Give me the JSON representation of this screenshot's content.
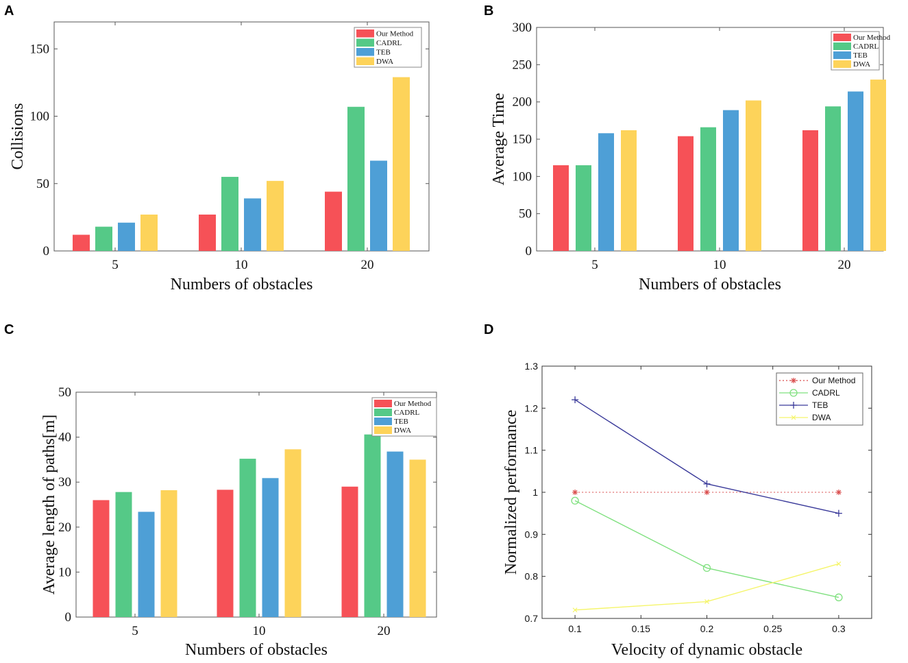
{
  "colors": {
    "our_method": "#f65157",
    "cadrl": "#55c987",
    "teb": "#4e9fd6",
    "dwa": "#fdd35a",
    "line_our": "#d94b4b",
    "line_cadrl": "#7ee07e",
    "line_teb": "#3a3a9a",
    "line_dwa": "#f5f56a"
  },
  "chart_data": [
    {
      "panel": "A",
      "type": "bar",
      "xlabel": "Numbers of obstacles",
      "ylabel": "Collisions",
      "ylim": [
        0,
        170
      ],
      "yticks": [
        0,
        50,
        100,
        150
      ],
      "categories": [
        "5",
        "10",
        "20"
      ],
      "series": [
        {
          "name": "Our Method",
          "values": [
            12,
            27,
            44
          ]
        },
        {
          "name": "CADRL",
          "values": [
            18,
            55,
            107
          ]
        },
        {
          "name": "TEB",
          "values": [
            21,
            39,
            67
          ]
        },
        {
          "name": "DWA",
          "values": [
            27,
            52,
            129
          ]
        }
      ],
      "legend": "top-right"
    },
    {
      "panel": "B",
      "type": "bar",
      "xlabel": "Numbers of obstacles",
      "ylabel": "Average Time",
      "ylim": [
        0,
        300
      ],
      "yticks": [
        0,
        50,
        100,
        150,
        200,
        250,
        300
      ],
      "categories": [
        "5",
        "10",
        "20"
      ],
      "series": [
        {
          "name": "Our Method",
          "values": [
            115,
            154,
            162
          ]
        },
        {
          "name": "CADRL",
          "values": [
            115,
            166,
            194
          ]
        },
        {
          "name": "TEB",
          "values": [
            158,
            189,
            214
          ]
        },
        {
          "name": "DWA",
          "values": [
            162,
            202,
            230
          ]
        }
      ],
      "legend": "top-right"
    },
    {
      "panel": "C",
      "type": "bar",
      "xlabel": "Numbers of obstacles",
      "ylabel": "Average length of paths[m]",
      "ylim": [
        0,
        50
      ],
      "yticks": [
        0,
        10,
        20,
        30,
        40,
        50
      ],
      "categories": [
        "5",
        "10",
        "20"
      ],
      "series": [
        {
          "name": "Our Method",
          "values": [
            26,
            28.3,
            29
          ]
        },
        {
          "name": "CADRL",
          "values": [
            27.8,
            35.2,
            40.6
          ]
        },
        {
          "name": "TEB",
          "values": [
            23.4,
            30.9,
            36.8
          ]
        },
        {
          "name": "DWA",
          "values": [
            28.2,
            37.3,
            35
          ]
        }
      ],
      "legend": "top-right"
    },
    {
      "panel": "D",
      "type": "line",
      "xlabel": "Velocity of dynamic obstacle",
      "ylabel": "Normalized performance",
      "xlim": [
        0.075,
        0.325
      ],
      "ylim": [
        0.7,
        1.3
      ],
      "xticks": [
        "0.1",
        "0.15",
        "0.2",
        "0.25",
        "0.3"
      ],
      "yticks": [
        "0.7",
        "0.8",
        "0.9",
        "1",
        "1.1",
        "1.2",
        "1.3"
      ],
      "x": [
        0.1,
        0.2,
        0.3
      ],
      "series": [
        {
          "name": "Our Method",
          "values": [
            1.0,
            1.0,
            1.0
          ],
          "style": "dotted",
          "marker": "*"
        },
        {
          "name": "CADRL",
          "values": [
            0.98,
            0.82,
            0.75
          ],
          "style": "solid",
          "marker": "o"
        },
        {
          "name": "TEB",
          "values": [
            1.22,
            1.02,
            0.95
          ],
          "style": "solid",
          "marker": "+"
        },
        {
          "name": "DWA",
          "values": [
            0.72,
            0.74,
            0.83
          ],
          "style": "solid",
          "marker": "x"
        }
      ],
      "legend": "top-right"
    }
  ]
}
